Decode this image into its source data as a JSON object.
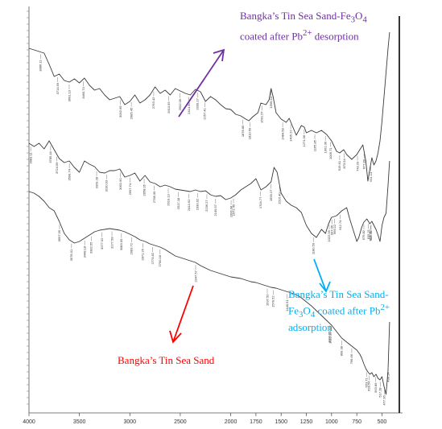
{
  "chart_data": {
    "type": "line",
    "xlim": [
      4000,
      400
    ],
    "x_ticks": [
      4000,
      3500,
      3000,
      2500,
      2000,
      1750,
      1500,
      1250,
      1000,
      750,
      500
    ],
    "grid": false,
    "series": [
      {
        "name": "Bangka’s Tin Sea Sand-Fe3O4 coated after Pb2+ desorption",
        "color": "#7030a0",
        "points": [
          [
            4000,
            60
          ],
          [
            3900,
            64
          ],
          [
            3850,
            66
          ],
          [
            3800,
            80
          ],
          [
            3750,
            95
          ],
          [
            3700,
            92
          ],
          [
            3650,
            100
          ],
          [
            3600,
            102
          ],
          [
            3550,
            98
          ],
          [
            3500,
            103
          ],
          [
            3450,
            97
          ],
          [
            3400,
            106
          ],
          [
            3350,
            112
          ],
          [
            3300,
            110
          ],
          [
            3250,
            118
          ],
          [
            3200,
            124
          ],
          [
            3150,
            122
          ],
          [
            3100,
            120
          ],
          [
            3050,
            130
          ],
          [
            3000,
            126
          ],
          [
            2950,
            118
          ],
          [
            2900,
            128
          ],
          [
            2850,
            124
          ],
          [
            2800,
            118
          ],
          [
            2750,
            108
          ],
          [
            2700,
            116
          ],
          [
            2650,
            112
          ],
          [
            2600,
            118
          ],
          [
            2550,
            110
          ],
          [
            2500,
            113
          ],
          [
            2450,
            116
          ],
          [
            2400,
            118
          ],
          [
            2350,
            111
          ],
          [
            2300,
            114
          ],
          [
            2250,
            126
          ],
          [
            2200,
            120
          ],
          [
            2150,
            124
          ],
          [
            2100,
            130
          ],
          [
            2050,
            135
          ],
          [
            2000,
            136
          ],
          [
            1950,
            142
          ],
          [
            1900,
            144
          ],
          [
            1850,
            148
          ],
          [
            1820,
            150
          ],
          [
            1780,
            145
          ],
          [
            1730,
            140
          ],
          [
            1700,
            128
          ],
          [
            1650,
            130
          ],
          [
            1620,
            124
          ],
          [
            1600,
            110
          ],
          [
            1580,
            120
          ],
          [
            1550,
            140
          ],
          [
            1500,
            148
          ],
          [
            1450,
            152
          ],
          [
            1420,
            147
          ],
          [
            1400,
            153
          ],
          [
            1350,
            168
          ],
          [
            1300,
            156
          ],
          [
            1270,
            158
          ],
          [
            1250,
            165
          ],
          [
            1200,
            162
          ],
          [
            1150,
            165
          ],
          [
            1100,
            162
          ],
          [
            1050,
            167
          ],
          [
            1000,
            175
          ],
          [
            950,
            188
          ],
          [
            920,
            190
          ],
          [
            880,
            186
          ],
          [
            850,
            192
          ],
          [
            800,
            198
          ],
          [
            750,
            192
          ],
          [
            720,
            186
          ],
          [
            690,
            180
          ],
          [
            660,
            200
          ],
          [
            640,
            225
          ],
          [
            620,
            210
          ],
          [
            600,
            196
          ],
          [
            580,
            205
          ],
          [
            560,
            200
          ],
          [
            540,
            190
          ],
          [
            520,
            175
          ],
          [
            500,
            150
          ],
          [
            480,
            120
          ],
          [
            460,
            90
          ],
          [
            440,
            60
          ],
          [
            425,
            40
          ]
        ]
      },
      {
        "name": "Bangka’s Tin Sea Sand-Fe3O4 coated after Pb2+ adsorption",
        "color": "#00b0f0",
        "points": [
          [
            4000,
            178
          ],
          [
            3950,
            182
          ],
          [
            3900,
            178
          ],
          [
            3850,
            185
          ],
          [
            3800,
            175
          ],
          [
            3750,
            186
          ],
          [
            3700,
            197
          ],
          [
            3650,
            202
          ],
          [
            3600,
            200
          ],
          [
            3550,
            208
          ],
          [
            3500,
            214
          ],
          [
            3450,
            200
          ],
          [
            3400,
            204
          ],
          [
            3350,
            207
          ],
          [
            3300,
            214
          ],
          [
            3250,
            215
          ],
          [
            3200,
            212
          ],
          [
            3150,
            212
          ],
          [
            3100,
            210
          ],
          [
            3050,
            220
          ],
          [
            3000,
            218
          ],
          [
            2950,
            215
          ],
          [
            2900,
            225
          ],
          [
            2850,
            218
          ],
          [
            2800,
            226
          ],
          [
            2750,
            228
          ],
          [
            2700,
            232
          ],
          [
            2650,
            230
          ],
          [
            2600,
            232
          ],
          [
            2550,
            235
          ],
          [
            2500,
            236
          ],
          [
            2450,
            237
          ],
          [
            2400,
            238
          ],
          [
            2350,
            236
          ],
          [
            2300,
            238
          ],
          [
            2250,
            237
          ],
          [
            2200,
            242
          ],
          [
            2150,
            244
          ],
          [
            2100,
            243
          ],
          [
            2050,
            248
          ],
          [
            2000,
            246
          ],
          [
            1950,
            242
          ],
          [
            1900,
            236
          ],
          [
            1850,
            232
          ],
          [
            1800,
            228
          ],
          [
            1750,
            222
          ],
          [
            1700,
            236
          ],
          [
            1650,
            232
          ],
          [
            1600,
            226
          ],
          [
            1570,
            208
          ],
          [
            1540,
            214
          ],
          [
            1500,
            240
          ],
          [
            1450,
            250
          ],
          [
            1400,
            255
          ],
          [
            1350,
            258
          ],
          [
            1300,
            264
          ],
          [
            1250,
            280
          ],
          [
            1200,
            290
          ],
          [
            1150,
            295
          ],
          [
            1100,
            285
          ],
          [
            1060,
            290
          ],
          [
            1030,
            278
          ],
          [
            1000,
            270
          ],
          [
            950,
            268
          ],
          [
            900,
            262
          ],
          [
            850,
            258
          ],
          [
            820,
            272
          ],
          [
            780,
            288
          ],
          [
            750,
            300
          ],
          [
            730,
            295
          ],
          [
            700,
            282
          ],
          [
            680,
            276
          ],
          [
            650,
            272
          ],
          [
            620,
            278
          ],
          [
            600,
            275
          ],
          [
            580,
            280
          ],
          [
            560,
            285
          ],
          [
            540,
            292
          ],
          [
            520,
            300
          ],
          [
            500,
            280
          ],
          [
            480,
            270
          ],
          [
            460,
            265
          ],
          [
            440,
            230
          ],
          [
            425,
            200
          ]
        ]
      },
      {
        "name": "Bangka’s Tin Sea Sand",
        "color": "#ff0000",
        "points": [
          [
            4000,
            238
          ],
          [
            3950,
            240
          ],
          [
            3900,
            244
          ],
          [
            3850,
            250
          ],
          [
            3800,
            258
          ],
          [
            3750,
            262
          ],
          [
            3700,
            275
          ],
          [
            3650,
            290
          ],
          [
            3600,
            298
          ],
          [
            3550,
            302
          ],
          [
            3500,
            300
          ],
          [
            3450,
            296
          ],
          [
            3400,
            292
          ],
          [
            3350,
            288
          ],
          [
            3300,
            286
          ],
          [
            3250,
            285
          ],
          [
            3200,
            284
          ],
          [
            3150,
            285
          ],
          [
            3100,
            286
          ],
          [
            3050,
            288
          ],
          [
            3000,
            291
          ],
          [
            2950,
            294
          ],
          [
            2900,
            298
          ],
          [
            2850,
            300
          ],
          [
            2800,
            303
          ],
          [
            2750,
            305
          ],
          [
            2700,
            307
          ],
          [
            2650,
            310
          ],
          [
            2600,
            314
          ],
          [
            2550,
            318
          ],
          [
            2500,
            320
          ],
          [
            2450,
            322
          ],
          [
            2400,
            324
          ],
          [
            2350,
            326
          ],
          [
            2300,
            330
          ],
          [
            2250,
            333
          ],
          [
            2200,
            336
          ],
          [
            2150,
            338
          ],
          [
            2100,
            340
          ],
          [
            2050,
            342
          ],
          [
            2000,
            344
          ],
          [
            1950,
            345
          ],
          [
            1900,
            346
          ],
          [
            1850,
            348
          ],
          [
            1800,
            350
          ],
          [
            1750,
            351
          ],
          [
            1700,
            353
          ],
          [
            1650,
            355
          ],
          [
            1600,
            357
          ],
          [
            1550,
            358
          ],
          [
            1500,
            360
          ],
          [
            1450,
            362
          ],
          [
            1400,
            364
          ],
          [
            1350,
            366
          ],
          [
            1300,
            370
          ],
          [
            1250,
            375
          ],
          [
            1200,
            380
          ],
          [
            1150,
            386
          ],
          [
            1100,
            392
          ],
          [
            1050,
            398
          ],
          [
            1000,
            404
          ],
          [
            950,
            412
          ],
          [
            900,
            420
          ],
          [
            850,
            425
          ],
          [
            800,
            430
          ],
          [
            750,
            435
          ],
          [
            720,
            440
          ],
          [
            700,
            445
          ],
          [
            680,
            452
          ],
          [
            660,
            458
          ],
          [
            640,
            462
          ],
          [
            620,
            465
          ],
          [
            600,
            463
          ],
          [
            580,
            468
          ],
          [
            560,
            465
          ],
          [
            540,
            470
          ],
          [
            520,
            472
          ],
          [
            500,
            468
          ],
          [
            480,
            480
          ],
          [
            460,
            490
          ],
          [
            440,
            460
          ],
          [
            425,
            400
          ]
        ]
      }
    ]
  },
  "annotations": {
    "desorption": {
      "pre": "Bangka’s Tin Sea Sand-Fe",
      "s1": "3",
      "mid": "O",
      "s2": "4",
      "line2_pre": "coated after Pb",
      "sup": "2+",
      "line2_post": " desorption"
    },
    "adsorption": {
      "line1": "Bangka’s Tin Sea Sand-",
      "fe": "Fe",
      "s1": "3",
      "o": "O",
      "s2": "4",
      "rest": " coated after Pb",
      "sup": "2+",
      "line3": "adsorption"
    },
    "sand": "Bangka’s Tin Sea Sand"
  },
  "peak_labels": {
    "purple": [
      "3886.11",
      "3714.59",
      "3601.13",
      "3460.73",
      "3092.69",
      "2985.45",
      "2763.42",
      "2613.55",
      "2502.09",
      "2414.95",
      "2330.17",
      "2257.41",
      "1878.85",
      "1810.59",
      "1691.57",
      "1599.64",
      "1484.58",
      "1405.22",
      "1271.06",
      "1165.85",
      "1061.06",
      "1009.71",
      "919.61",
      "873.54",
      "743.29",
      "677.89",
      "611.14"
    ],
    "blue": [
      "3983.11",
      "3785.44",
      "3724.99",
      "3599.74",
      "3329.28",
      "3230.93",
      "3092.90",
      "2997.74",
      "2858.05",
      "2758.39",
      "2619.13",
      "2517.18",
      "2414.91",
      "2330.02",
      "2236.27",
      "2149.57",
      "1996.08",
      "1972.45",
      "1704.77",
      "1599.27",
      "1516.40",
      "1180.59",
      "1022.95",
      "997.06",
      "969.12",
      "912.74",
      "679.82",
      "635.21",
      "614.71",
      "607.96"
    ],
    "red": [
      "3697.05",
      "3578.01",
      "3448.18",
      "3382.55",
      "3277.02",
      "3177.58",
      "3083.00",
      "2983.72",
      "2871.26",
      "2773.82",
      "2700.18",
      "2347.57",
      "1637.50",
      "1578.52",
      "1440.51",
      "1020.55",
      "1012.10",
      "899.38",
      "799.66",
      "653.71",
      "628.54",
      "563.89",
      "517.28",
      "477.36",
      "438.14"
    ]
  }
}
